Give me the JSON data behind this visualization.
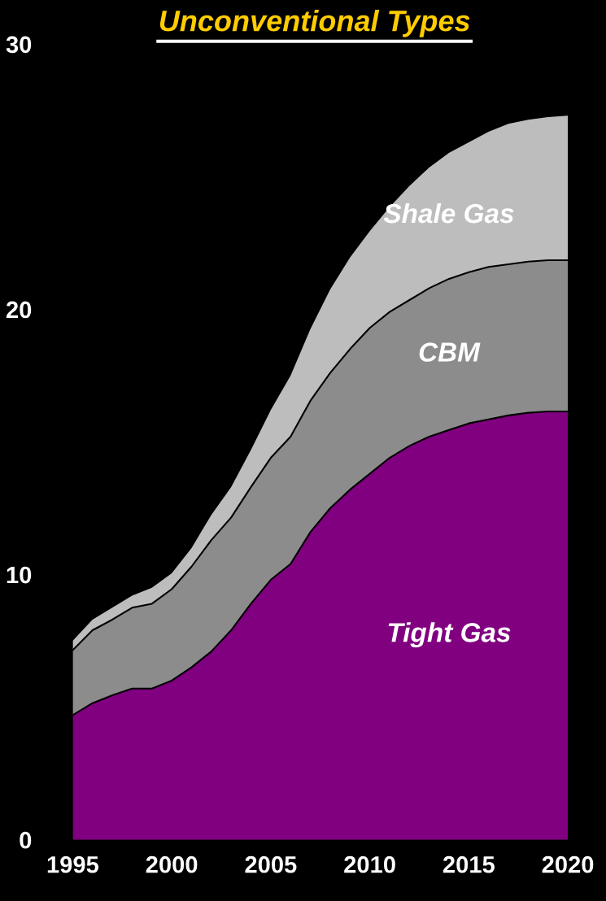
{
  "chart_data": {
    "type": "area",
    "stacked": true,
    "title": "Unconventional Types",
    "x": [
      1995,
      1996,
      1997,
      1998,
      1999,
      2000,
      2001,
      2002,
      2003,
      2004,
      2005,
      2006,
      2007,
      2008,
      2009,
      2010,
      2011,
      2012,
      2013,
      2014,
      2015,
      2016,
      2017,
      2018,
      2019,
      2020
    ],
    "series": [
      {
        "name": "Tight Gas",
        "color": "#800080",
        "values": [
          4.7,
          5.15,
          5.45,
          5.7,
          5.7,
          6.0,
          6.5,
          7.1,
          7.9,
          8.9,
          9.8,
          10.4,
          11.6,
          12.5,
          13.2,
          13.8,
          14.4,
          14.85,
          15.2,
          15.45,
          15.7,
          15.85,
          16.0,
          16.1,
          16.15,
          16.15
        ]
      },
      {
        "name": "CBM",
        "color": "#8c8c8c",
        "values": [
          2.45,
          2.75,
          2.85,
          3.05,
          3.2,
          3.45,
          3.8,
          4.2,
          4.25,
          4.4,
          4.6,
          4.8,
          4.95,
          5.1,
          5.3,
          5.5,
          5.5,
          5.5,
          5.6,
          5.7,
          5.7,
          5.75,
          5.7,
          5.7,
          5.7,
          5.7
        ]
      },
      {
        "name": "Shale Gas",
        "color": "#bdbdbd",
        "values": [
          0.35,
          0.4,
          0.45,
          0.45,
          0.6,
          0.6,
          0.7,
          0.95,
          1.15,
          1.4,
          1.8,
          2.3,
          2.7,
          3.15,
          3.45,
          3.65,
          3.95,
          4.3,
          4.55,
          4.75,
          4.9,
          5.1,
          5.3,
          5.35,
          5.4,
          5.45
        ]
      }
    ],
    "xlim": [
      1995,
      2020
    ],
    "xticks": [
      1995,
      2000,
      2005,
      2010,
      2015,
      2020
    ],
    "ylim": [
      0,
      30
    ],
    "yticks": [
      0,
      10,
      20,
      30
    ],
    "grid": false,
    "legend": false
  }
}
